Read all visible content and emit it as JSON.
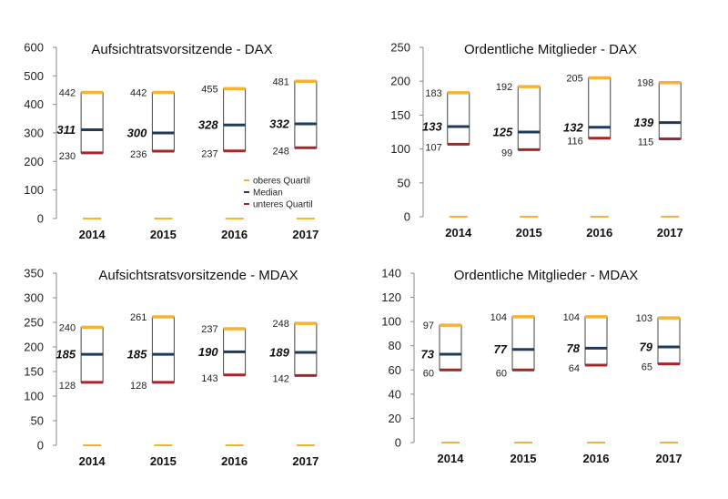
{
  "legend": [
    {
      "label": "oberes Quartil",
      "color": "#F5B335"
    },
    {
      "label": "Median",
      "color": "#1F3B57"
    },
    {
      "label": "unteres Quartil",
      "color": "#A3262A"
    }
  ],
  "chart_data": [
    {
      "type": "box",
      "title": "Aufsichtratsvorsitzende - DAX",
      "categories": [
        "2014",
        "2015",
        "2016",
        "2017"
      ],
      "ylim": [
        0,
        600
      ],
      "yticks": [
        0,
        100,
        200,
        300,
        400,
        500,
        600
      ],
      "series": [
        {
          "name": "oberes Quartil",
          "values": [
            442,
            442,
            455,
            481
          ]
        },
        {
          "name": "Median",
          "values": [
            311,
            300,
            328,
            332
          ]
        },
        {
          "name": "unteres Quartil",
          "values": [
            230,
            236,
            237,
            248
          ]
        }
      ],
      "legend_position": "bottom-right"
    },
    {
      "type": "box",
      "title": "Ordentliche Mitglieder - DAX",
      "categories": [
        "2014",
        "2015",
        "2016",
        "2017"
      ],
      "ylim": [
        0,
        250
      ],
      "yticks": [
        0,
        50,
        100,
        150,
        200,
        250
      ],
      "series": [
        {
          "name": "oberes Quartil",
          "values": [
            183,
            192,
            205,
            198
          ]
        },
        {
          "name": "Median",
          "values": [
            133,
            125,
            132,
            139
          ]
        },
        {
          "name": "unteres Quartil",
          "values": [
            107,
            99,
            116,
            115
          ]
        }
      ]
    },
    {
      "type": "box",
      "title": "Aufsichtsratsvorsitzende - MDAX",
      "categories": [
        "2014",
        "2015",
        "2016",
        "2017"
      ],
      "ylim": [
        0,
        350
      ],
      "yticks": [
        0,
        50,
        100,
        150,
        200,
        250,
        300,
        350
      ],
      "series": [
        {
          "name": "oberes Quartil",
          "values": [
            240,
            261,
            237,
            248
          ]
        },
        {
          "name": "Median",
          "values": [
            185,
            185,
            190,
            189
          ]
        },
        {
          "name": "unteres Quartil",
          "values": [
            128,
            128,
            143,
            142
          ]
        }
      ]
    },
    {
      "type": "box",
      "title": "Ordentliche Mitglieder - MDAX",
      "categories": [
        "2014",
        "2015",
        "2016",
        "2017"
      ],
      "ylim": [
        0,
        140
      ],
      "yticks": [
        0,
        20,
        40,
        60,
        80,
        100,
        120,
        140
      ],
      "series": [
        {
          "name": "oberes Quartil",
          "values": [
            97,
            104,
            104,
            103
          ]
        },
        {
          "name": "Median",
          "values": [
            73,
            77,
            78,
            79
          ]
        },
        {
          "name": "unteres Quartil",
          "values": [
            60,
            60,
            64,
            65
          ]
        }
      ]
    }
  ]
}
